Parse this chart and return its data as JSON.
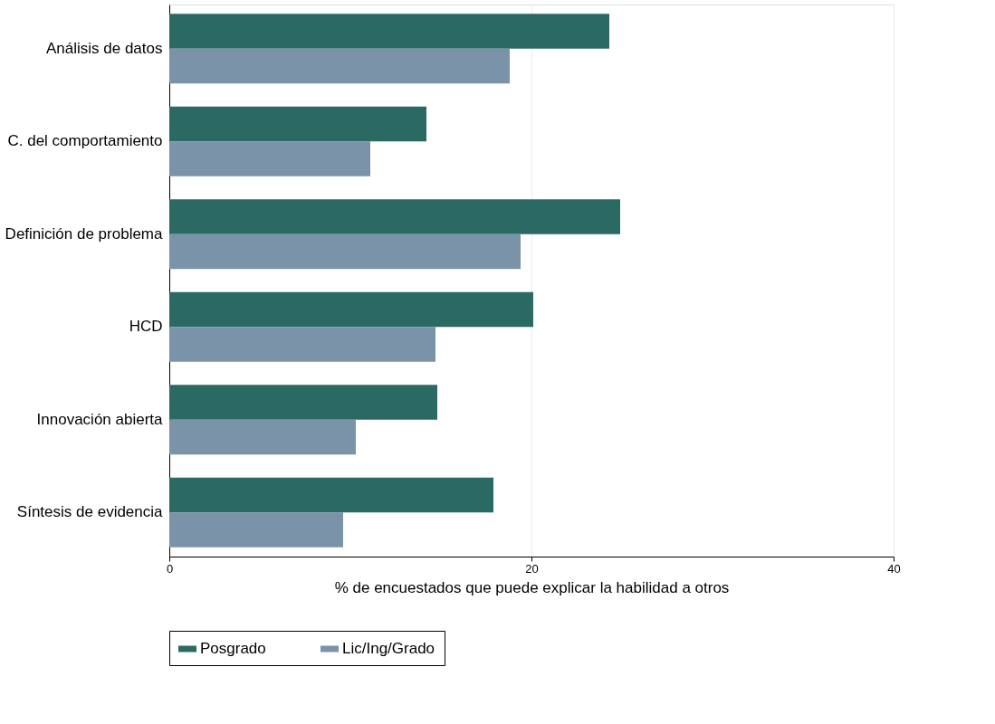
{
  "chart_data": {
    "type": "bar",
    "orientation": "horizontal",
    "xlabel": "% de encuestados que puede explicar la habilidad a otros",
    "categories": [
      "Análisis de datos",
      "C. del comportamiento",
      "Definición de problema",
      "HCD",
      "Innovación abierta",
      "Síntesis de evidencia"
    ],
    "series": [
      {
        "name": "Posgrado",
        "color": "#2b6a62",
        "values": [
          24.3,
          14.2,
          24.9,
          20.1,
          14.8,
          17.9
        ]
      },
      {
        "name": "Lic/Ing/Grado",
        "color": "#7b93a8",
        "values": [
          18.8,
          11.1,
          19.4,
          14.7,
          10.3,
          9.6
        ]
      }
    ],
    "xlim": [
      0,
      40
    ],
    "xticks": [
      0,
      20,
      40
    ],
    "grid": "x",
    "legend": "bottom"
  }
}
